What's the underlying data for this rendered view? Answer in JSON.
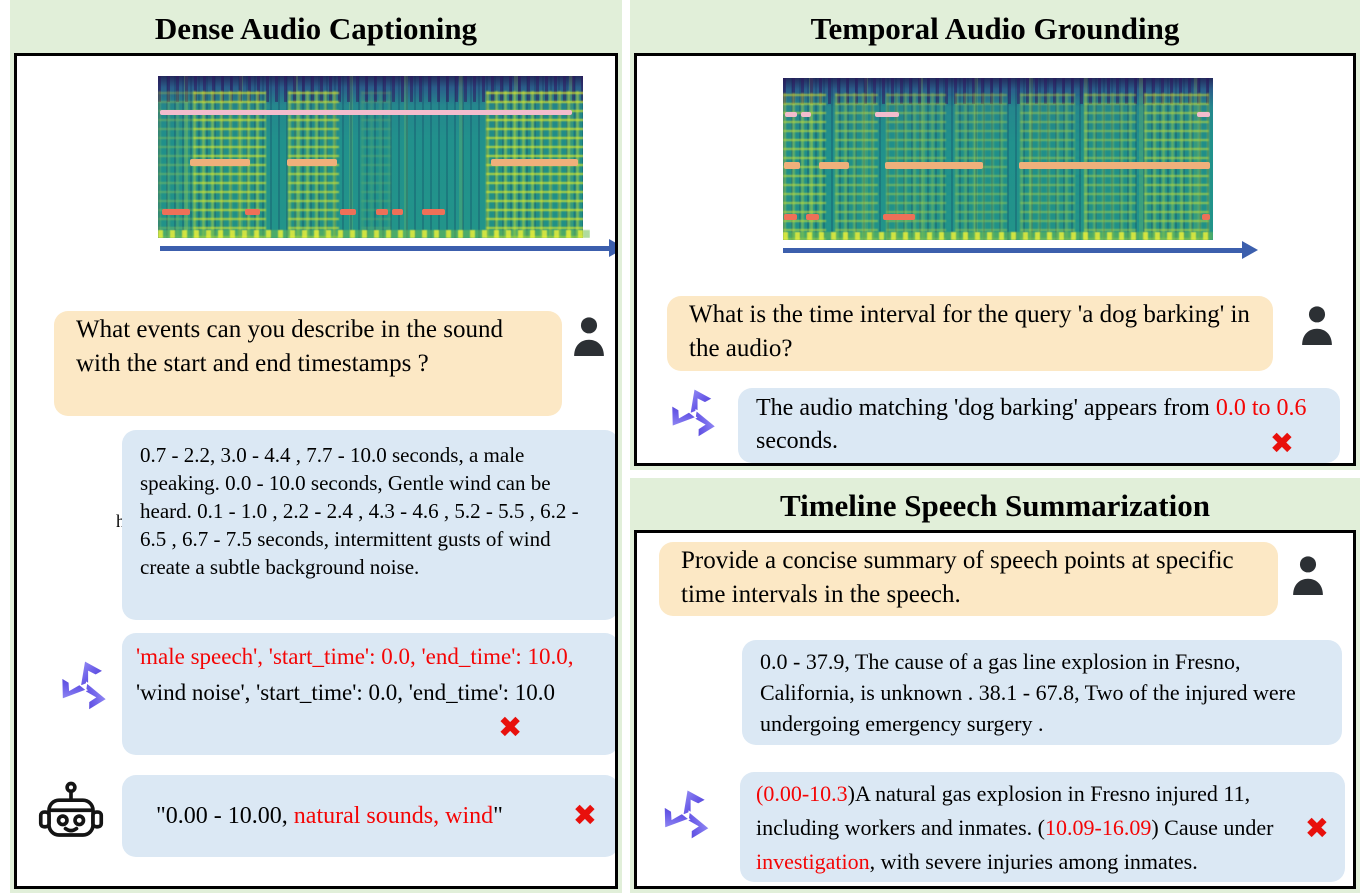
{
  "colors": {
    "red": "#f40505",
    "black": "#000000",
    "header_bg": "#e1efd9",
    "question_bubble_bg": "#fce8c5",
    "answer_bubble_bg": "#dbe8f4",
    "panel_border": "#000000",
    "timeline_arrow": "#3c5fad",
    "marker_pink": "#f3bccd",
    "marker_orange": "#efb07b",
    "marker_red": "#ee7058",
    "wrong_mark": "#e8100c",
    "logo_purple": "#5a4ade"
  },
  "icons": {
    "user": "person-silhouette",
    "model": "qwen-style-logo",
    "baseline": "robot-head",
    "wrong": "red-cross"
  },
  "marks": {
    "wrong": "✖"
  },
  "panels": {
    "dense_captioning": {
      "title": "Dense Audio Captioning",
      "question": "What events can you describe in the sound with the start and end timestamps ?",
      "stray_char": "h",
      "ground_truth": "0.7 - 2.2, 3.0 - 4.4 , 7.7 - 10.0 seconds, a male speaking. 0.0 - 10.0 seconds, Gentle wind can be heard. 0.1 - 1.0 , 2.2 - 2.4 , 4.3 - 4.6 , 5.2 - 5.5 , 6.2 - 6.5 , 6.7 - 7.5 seconds, intermittent gusts of wind create a subtle background noise.",
      "model_answer_segments": [
        {
          "t": "'male speech', 'start_time': 0.0, 'end_time': 10.0,",
          "c": "red"
        },
        {
          "t": "  'wind noise', 'start_time': 0.0, 'end_time': 10.0",
          "c": "black"
        }
      ],
      "baseline_answer_segments": [
        {
          "t": "\"0.00 - 10.00, ",
          "c": "black"
        },
        {
          "t": "natural sounds, wind",
          "c": "red"
        },
        {
          "t": "\"",
          "c": "black"
        }
      ]
    },
    "temporal_grounding": {
      "title": "Temporal Audio Grounding",
      "question": "What is the time interval for the query 'a dog barking' in the audio?",
      "model_answer_segments": [
        {
          "t": "The audio matching 'dog barking' appears from ",
          "c": "black"
        },
        {
          "t": "0.0 to 0.6",
          "c": "red"
        },
        {
          "t": " seconds.",
          "c": "black"
        }
      ]
    },
    "timeline_summarization": {
      "title": "Timeline Speech Summarization",
      "question": "Provide a concise summary of speech points at specific time intervals in the speech.",
      "ground_truth": "0.0 - 37.9, The cause of a gas line explosion in Fresno, California, is unknown . 38.1 - 67.8, Two of the injured were undergoing emergency surgery .",
      "model_answer_segments": [
        {
          "t": "(0.00-10.3",
          "c": "red"
        },
        {
          "t": ")A natural gas explosion in Fresno injured 11, including workers and inmates. (",
          "c": "black"
        },
        {
          "t": "10.09-16.09",
          "c": "red"
        },
        {
          "t": ") Cause under ",
          "c": "black"
        },
        {
          "t": "investigation",
          "c": "red"
        },
        {
          "t": ", with severe injuries among inmates.",
          "c": "black"
        }
      ]
    }
  }
}
